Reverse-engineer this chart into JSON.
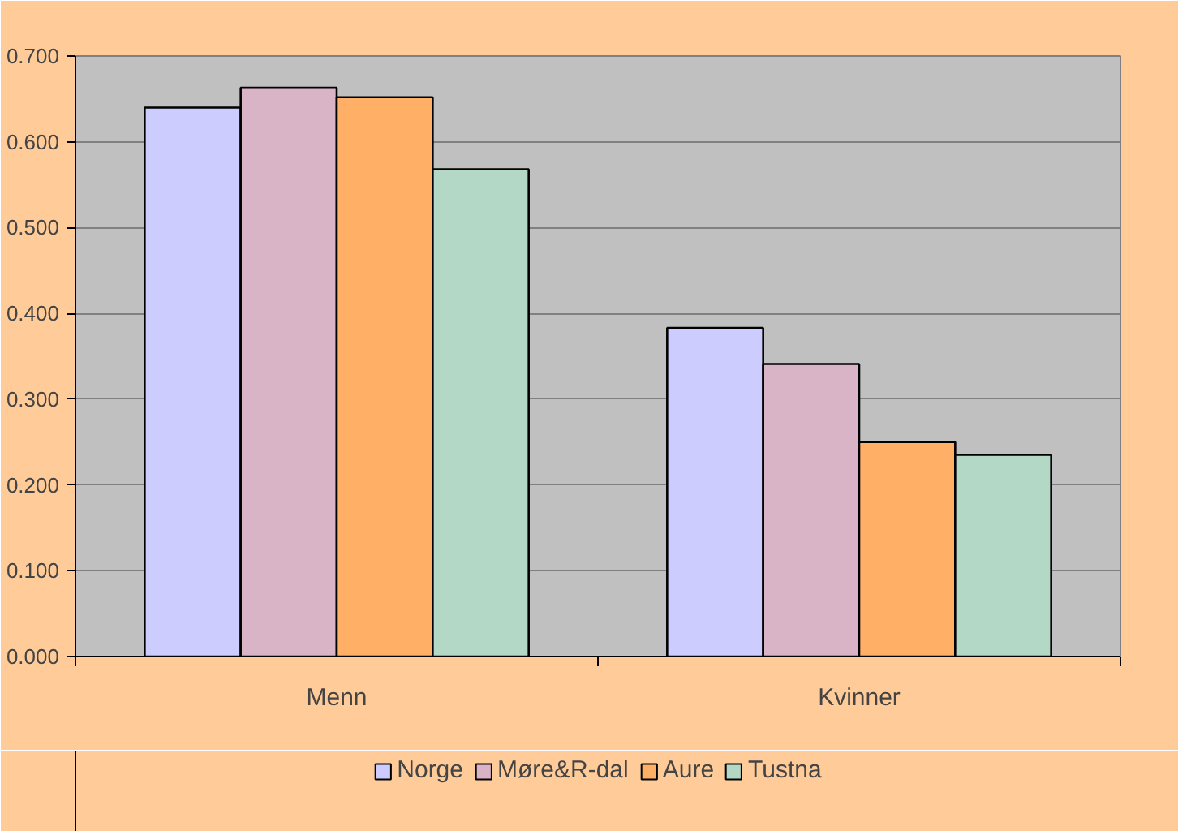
{
  "chart_data": {
    "type": "bar",
    "categories": [
      "Menn",
      "Kvinner"
    ],
    "series": [
      {
        "name": "Norge",
        "color": "#ccccff",
        "values": [
          0.64,
          0.383
        ]
      },
      {
        "name": "Møre&R-dal",
        "color": "#d9b3c6",
        "values": [
          0.663,
          0.341
        ]
      },
      {
        "name": "Aure",
        "color": "#ffb066",
        "values": [
          0.652,
          0.25
        ]
      },
      {
        "name": "Tustna",
        "color": "#b3d9c6",
        "values": [
          0.568,
          0.235
        ]
      }
    ],
    "ylim": [
      0,
      0.7
    ],
    "yticks": [
      {
        "value": 0,
        "label": "0.000"
      },
      {
        "value": 0.1,
        "label": "0.100"
      },
      {
        "value": 0.2,
        "label": "0.200"
      },
      {
        "value": 0.3,
        "label": "0.300"
      },
      {
        "value": 0.4,
        "label": "0.400"
      },
      {
        "value": 0.5,
        "label": "0.500"
      },
      {
        "value": 0.6,
        "label": "0.600"
      },
      {
        "value": 0.7,
        "label": "0.700"
      }
    ],
    "grid": "y",
    "legend": "bottom"
  }
}
